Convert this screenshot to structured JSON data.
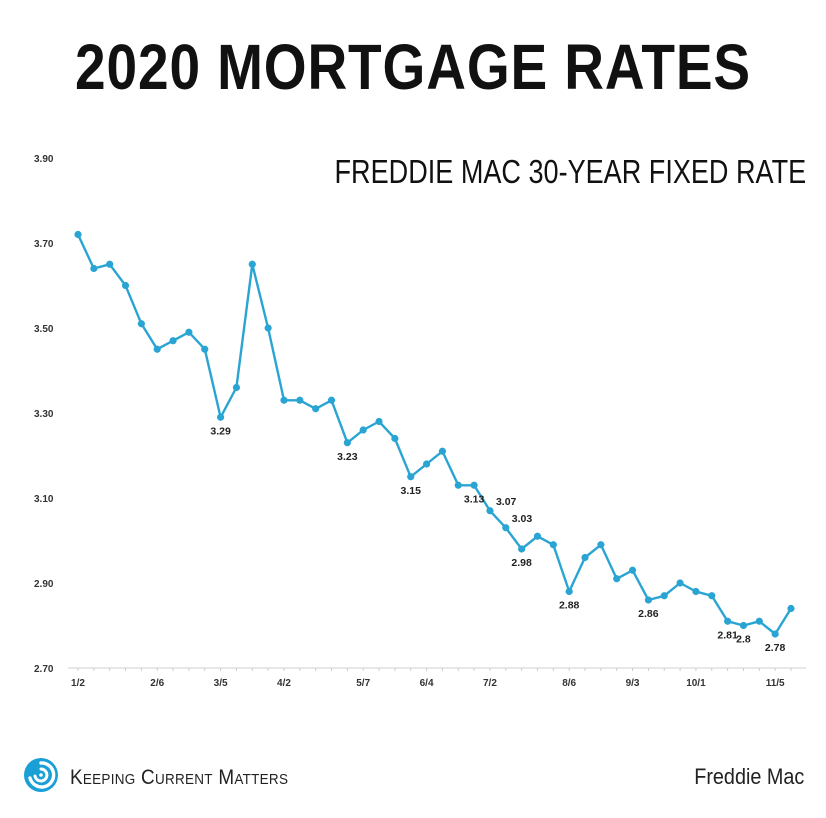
{
  "title": "2020 MORTGAGE RATES",
  "subtitle": "FREDDIE MAC 30-YEAR FIXED RATE",
  "brand": {
    "name": "Keeping Current Matters",
    "logo_icon": "kcm-swirl-icon",
    "logo_color": "#1a9fd6"
  },
  "source": "Freddie Mac",
  "chart_data": {
    "type": "line",
    "line_color": "#2aa5d3",
    "ylim": [
      2.7,
      3.9
    ],
    "yticks": [
      "2.70",
      "2.90",
      "3.10",
      "3.30",
      "3.50",
      "3.70",
      "3.90"
    ],
    "xtick_labels": [
      {
        "label": "1/2",
        "i": 0
      },
      {
        "label": "2/6",
        "i": 5
      },
      {
        "label": "3/5",
        "i": 9
      },
      {
        "label": "4/2",
        "i": 13
      },
      {
        "label": "5/7",
        "i": 18
      },
      {
        "label": "6/4",
        "i": 22
      },
      {
        "label": "7/2",
        "i": 26
      },
      {
        "label": "8/6",
        "i": 31
      },
      {
        "label": "9/3",
        "i": 35
      },
      {
        "label": "10/1",
        "i": 39
      },
      {
        "label": "11/5",
        "i": 44
      }
    ],
    "grid": false,
    "values": [
      3.72,
      3.64,
      3.65,
      3.6,
      3.51,
      3.45,
      3.47,
      3.49,
      3.45,
      3.29,
      3.36,
      3.65,
      3.5,
      3.33,
      3.33,
      3.31,
      3.33,
      3.23,
      3.26,
      3.28,
      3.24,
      3.15,
      3.18,
      3.21,
      3.13,
      3.13,
      3.07,
      3.03,
      2.98,
      3.01,
      2.99,
      2.88,
      2.96,
      2.99,
      2.91,
      2.93,
      2.86,
      2.87,
      2.9,
      2.88,
      2.87,
      2.81,
      2.8,
      2.81,
      2.78,
      2.84
    ],
    "data_labels": [
      {
        "i": 9,
        "text": "3.29"
      },
      {
        "i": 17,
        "text": "3.23"
      },
      {
        "i": 21,
        "text": "3.15"
      },
      {
        "i": 25,
        "text": "3.13"
      },
      {
        "i": 26,
        "text": "3.07"
      },
      {
        "i": 27,
        "text": "3.03"
      },
      {
        "i": 28,
        "text": "2.98"
      },
      {
        "i": 31,
        "text": "2.88"
      },
      {
        "i": 36,
        "text": "2.86"
      },
      {
        "i": 41,
        "text": "2.81"
      },
      {
        "i": 42,
        "text": "2.8"
      },
      {
        "i": 44,
        "text": "2.78"
      }
    ]
  }
}
